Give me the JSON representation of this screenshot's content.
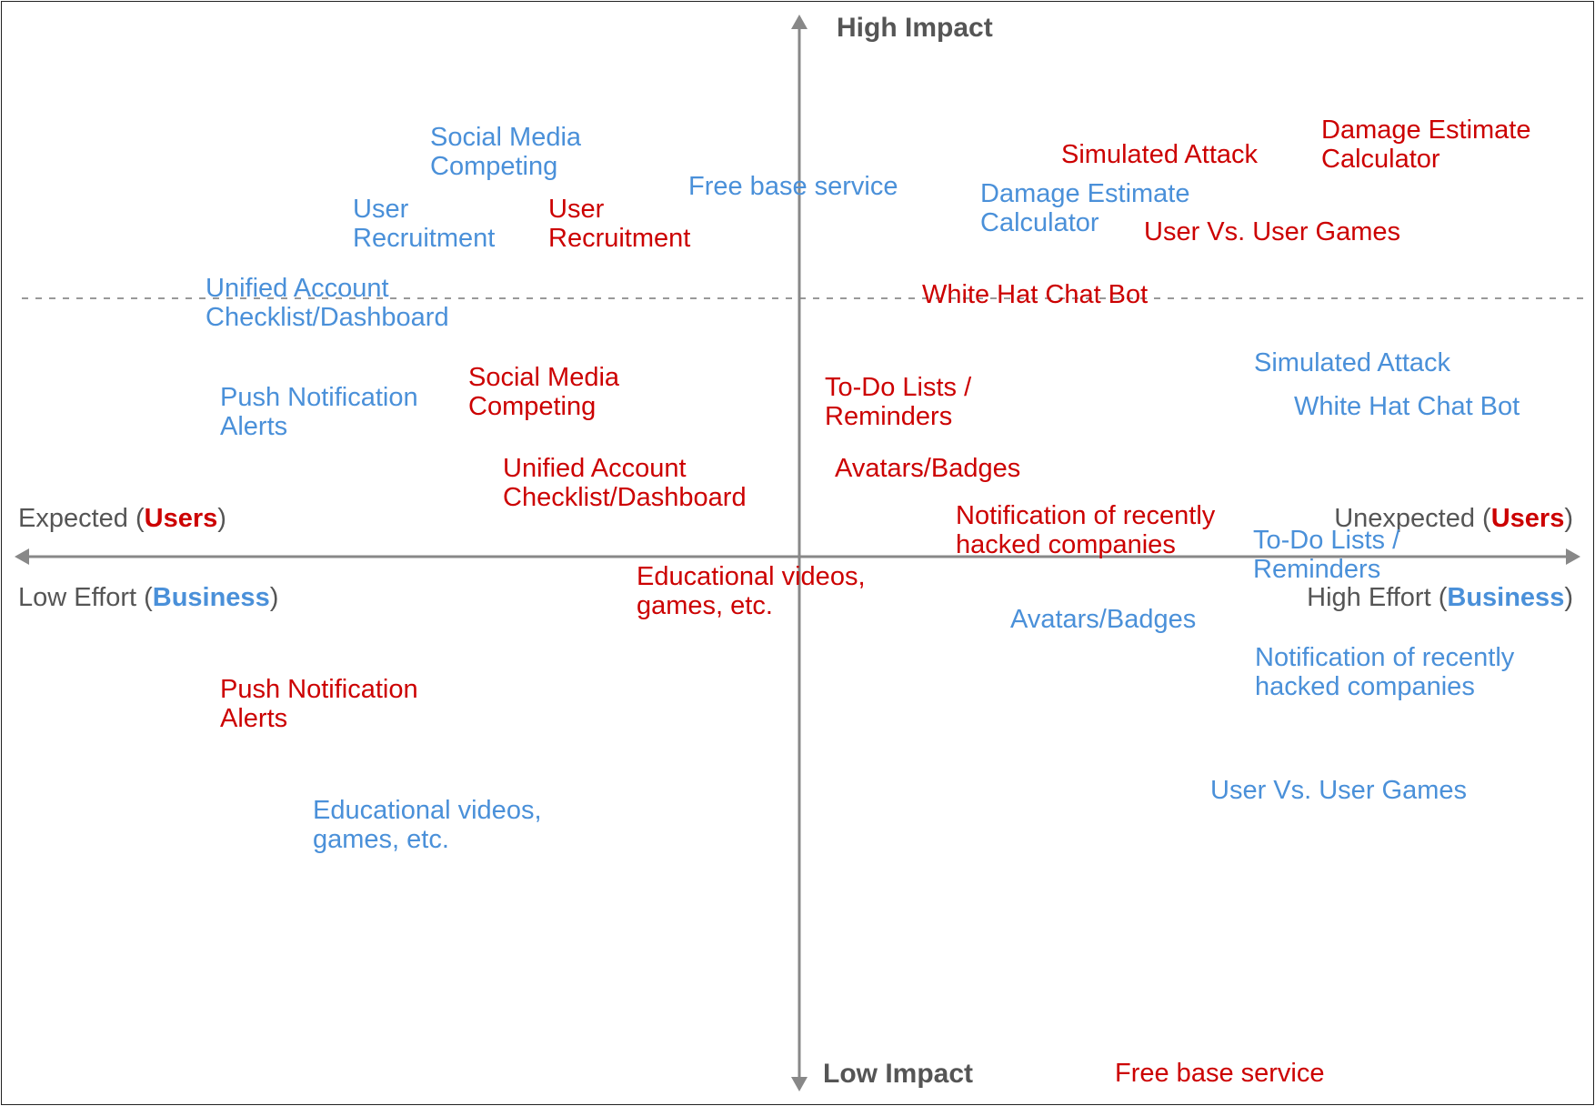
{
  "axes": {
    "top": "High Impact",
    "bottom": "Low Impact",
    "left_top_pre": "Expected (",
    "left_top_em": "Users",
    "left_top_post": ")",
    "left_bottom_pre": "Low Effort (",
    "left_bottom_em": "Business",
    "left_bottom_post": ")",
    "right_top_pre": "Unexpected (",
    "right_top_em": "Users",
    "right_top_post": ")",
    "right_bottom_pre": "High Effort (",
    "right_bottom_em": "Business",
    "right_bottom_post": ")"
  },
  "colors": {
    "users": "#cc0000",
    "business": "#4a90d9",
    "axis": "#888888",
    "axis_text": "#555555"
  },
  "labels": {
    "blue_social_media": [
      "Social Media",
      "Competing"
    ],
    "blue_free_base": [
      "Free base service"
    ],
    "blue_damage_estimate": [
      "Damage Estimate",
      "Calculator"
    ],
    "blue_user_recruitment": [
      "User",
      "Recruitment"
    ],
    "blue_unified_account": [
      "Unified Account",
      "Checklist/Dashboard"
    ],
    "blue_push_notification": [
      "Push Notification",
      "Alerts"
    ],
    "blue_simulated_attack": [
      "Simulated Attack"
    ],
    "blue_white_hat": [
      "White Hat Chat Bot"
    ],
    "blue_todo": [
      "To-Do Lists /",
      "Reminders"
    ],
    "blue_avatars": [
      "Avatars/Badges"
    ],
    "blue_notification_hacked": [
      "Notification of recently",
      "hacked companies"
    ],
    "blue_user_vs_user": [
      "User Vs. User Games"
    ],
    "blue_educational": [
      "Educational videos,",
      "games, etc."
    ],
    "red_simulated_attack": [
      "Simulated Attack"
    ],
    "red_damage_estimate": [
      "Damage Estimate",
      "Calculator"
    ],
    "red_user_recruitment": [
      "User",
      "Recruitment"
    ],
    "red_user_vs_user": [
      "User Vs. User Games"
    ],
    "red_white_hat": [
      "White Hat Chat Bot"
    ],
    "red_social_media": [
      "Social Media",
      "Competing"
    ],
    "red_todo": [
      "To-Do Lists /",
      "Reminders"
    ],
    "red_avatars": [
      "Avatars/Badges"
    ],
    "red_unified_account": [
      "Unified Account",
      "Checklist/Dashboard"
    ],
    "red_notification_hacked": [
      "Notification of recently",
      "hacked companies"
    ],
    "red_educational": [
      "Educational videos,",
      "games, etc."
    ],
    "red_push_notification": [
      "Push Notification",
      "Alerts"
    ],
    "red_free_base": [
      "Free base service"
    ]
  }
}
